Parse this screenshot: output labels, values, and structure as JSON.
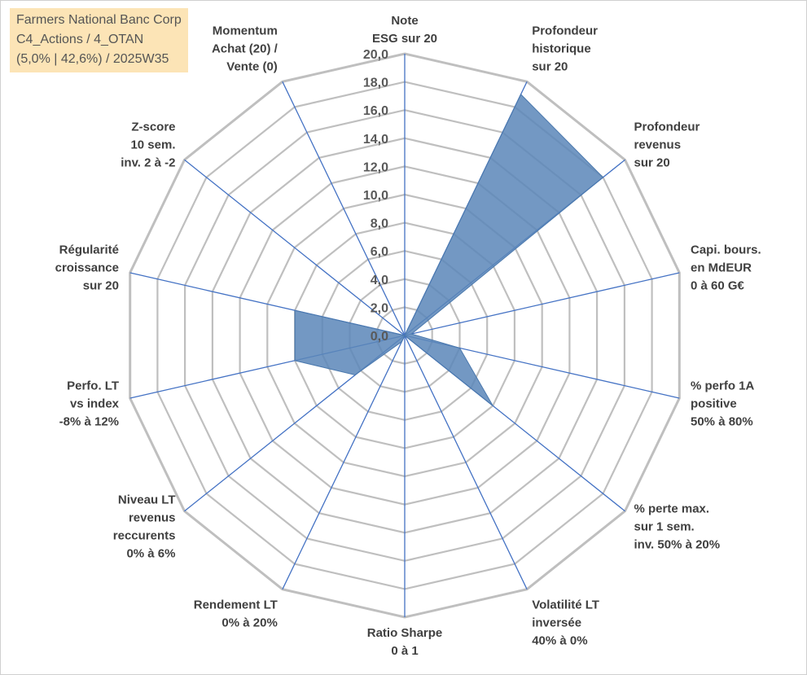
{
  "title": {
    "line1": "Farmers National Banc Corp",
    "line2": "C4_Actions / 4_OTAN",
    "line3": "(5,0% | 42,6%) / 2025W35"
  },
  "colors": {
    "title_bg": "#fce4b6",
    "grid": "#bfbfbf",
    "spoke": "#4472c4",
    "fill": "#5b86b8"
  },
  "chart_data": {
    "type": "radar",
    "r_min": 0,
    "r_max": 20,
    "r_step": 2,
    "tick_labels": [
      "0,0",
      "2,0",
      "4,0",
      "6,0",
      "8,0",
      "10,0",
      "12,0",
      "14,0",
      "16,0",
      "18,0",
      "20,0"
    ],
    "axes": [
      [
        "Note",
        "ESG sur 20"
      ],
      [
        "Profondeur",
        "historique",
        "sur 20"
      ],
      [
        "Profondeur",
        "revenus",
        "sur 20"
      ],
      [
        "Capi. bours.",
        "en MdEUR",
        "0 à 60 G€"
      ],
      [
        "% perfo 1A",
        "positive",
        "50% à 80%"
      ],
      [
        "% perte max.",
        "sur 1 sem.",
        "inv. 50% à 20%"
      ],
      [
        "Volatilité LT",
        "inversée",
        "40% à 0%"
      ],
      [
        "Ratio Sharpe",
        "0 à 1"
      ],
      [
        "Rendement LT",
        "0% à 20%"
      ],
      [
        "Niveau LT",
        "revenus",
        "reccurents",
        "0% à 6%"
      ],
      [
        "Perfo. LT",
        "vs index",
        "-8% à 12%"
      ],
      [
        "Régularité",
        "croissance",
        "sur 20"
      ],
      [
        "Z-score",
        "10 sem.",
        "inv. 2 à -2"
      ],
      [
        "Momentum",
        "Achat (20) /",
        "Vente (0)"
      ]
    ],
    "series": [
      {
        "values": [
          0,
          19,
          18,
          0.5,
          4,
          8,
          0,
          0,
          0.5,
          4.5,
          8,
          8,
          0,
          0
        ]
      }
    ],
    "grid": true,
    "legend": "none"
  }
}
